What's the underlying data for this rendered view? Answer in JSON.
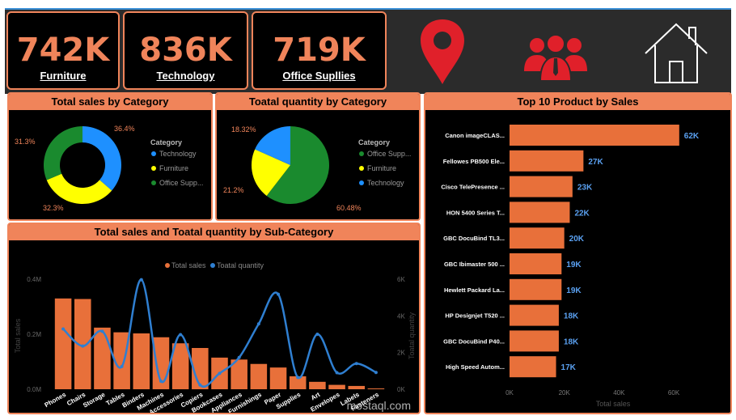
{
  "kpis": [
    {
      "value": "742K",
      "label": "Furniture"
    },
    {
      "value": "836K",
      "label": "Technology"
    },
    {
      "value": "719K",
      "label": "Office Supllies"
    }
  ],
  "icons": [
    "location-pin-icon",
    "people-group-icon",
    "home-icon"
  ],
  "colors": {
    "accent": "#f0845a",
    "bar": "#e8703a",
    "line": "#2f7fd1",
    "blue": "#1e90ff",
    "yellow": "#ffff00",
    "green": "#1a8a2e"
  },
  "watermark": "mostaql.com",
  "chart_data": [
    {
      "type": "pie",
      "variant": "donut",
      "title": "Total sales by Category",
      "legend_title": "Category",
      "labels": [
        "Technology",
        "Furniture",
        "Office Supp..."
      ],
      "values": [
        36.4,
        32.3,
        31.3
      ],
      "value_labels": [
        "36.4%",
        "32.3%",
        "31.3%"
      ]
    },
    {
      "type": "pie",
      "title": "Toatal quantity by Category",
      "legend_title": "Category",
      "labels": [
        "Office Supp...",
        "Furniture",
        "Technology"
      ],
      "values": [
        60.48,
        21.2,
        18.32
      ],
      "value_labels": [
        "60.48%",
        "21.2%",
        "18.32%"
      ]
    },
    {
      "type": "bar",
      "orientation": "horizontal",
      "title": "Top 10 Product by Sales",
      "categories": [
        "Canon imageCLAS...",
        "Fellowes PB500 Ele...",
        "Cisco TelePresence ...",
        "HON 5400 Series T...",
        "GBC DocuBind TL3...",
        "GBC Ibimaster 500 ...",
        "Hewlett Packard La...",
        "HP Designjet T520 ...",
        "GBC DocuBind P40...",
        "High Speed Autom..."
      ],
      "values": [
        62,
        27,
        23,
        22,
        20,
        19,
        19,
        18,
        18,
        17
      ],
      "value_labels": [
        "62K",
        "27K",
        "23K",
        "22K",
        "20K",
        "19K",
        "19K",
        "18K",
        "18K",
        "17K"
      ],
      "xlabel": "Total sales",
      "xticks": [
        "0K",
        "20K",
        "40K",
        "60K"
      ],
      "xlim": [
        0,
        70
      ]
    },
    {
      "type": "bar",
      "title": "Total sales and Toatal quantity by Sub-Category",
      "legend": [
        "Total sales",
        "Toatal quantity"
      ],
      "categories": [
        "Phones",
        "Chairs",
        "Storage",
        "Tables",
        "Binders",
        "Machines",
        "Accessories",
        "Copiers",
        "Bookcases",
        "Appliances",
        "Furnishings",
        "Paper",
        "Supplies",
        "Art",
        "Envelopes",
        "Labels",
        "Fasteners"
      ],
      "series": [
        {
          "name": "Total sales",
          "type": "bar",
          "axis": "left",
          "values": [
            330000,
            328000,
            224000,
            207000,
            203000,
            189000,
            167000,
            150000,
            115000,
            108000,
            92000,
            79000,
            47000,
            27000,
            16000,
            12000,
            3000
          ]
        },
        {
          "name": "Toatal quantity",
          "type": "line",
          "axis": "right",
          "values": [
            3289,
            2356,
            3158,
            1241,
            5974,
            440,
            2976,
            234,
            868,
            1729,
            3563,
            5178,
            647,
            3000,
            906,
            1400,
            914
          ]
        }
      ],
      "ylabel": "Total sales",
      "y2label": "Toatal quantity",
      "ylim": [
        0,
        400000
      ],
      "y2lim": [
        0,
        6000
      ],
      "yticks": [
        "0.0M",
        "0.2M",
        "0.4M"
      ],
      "y2ticks": [
        "0K",
        "2K",
        "4K",
        "6K"
      ]
    }
  ]
}
